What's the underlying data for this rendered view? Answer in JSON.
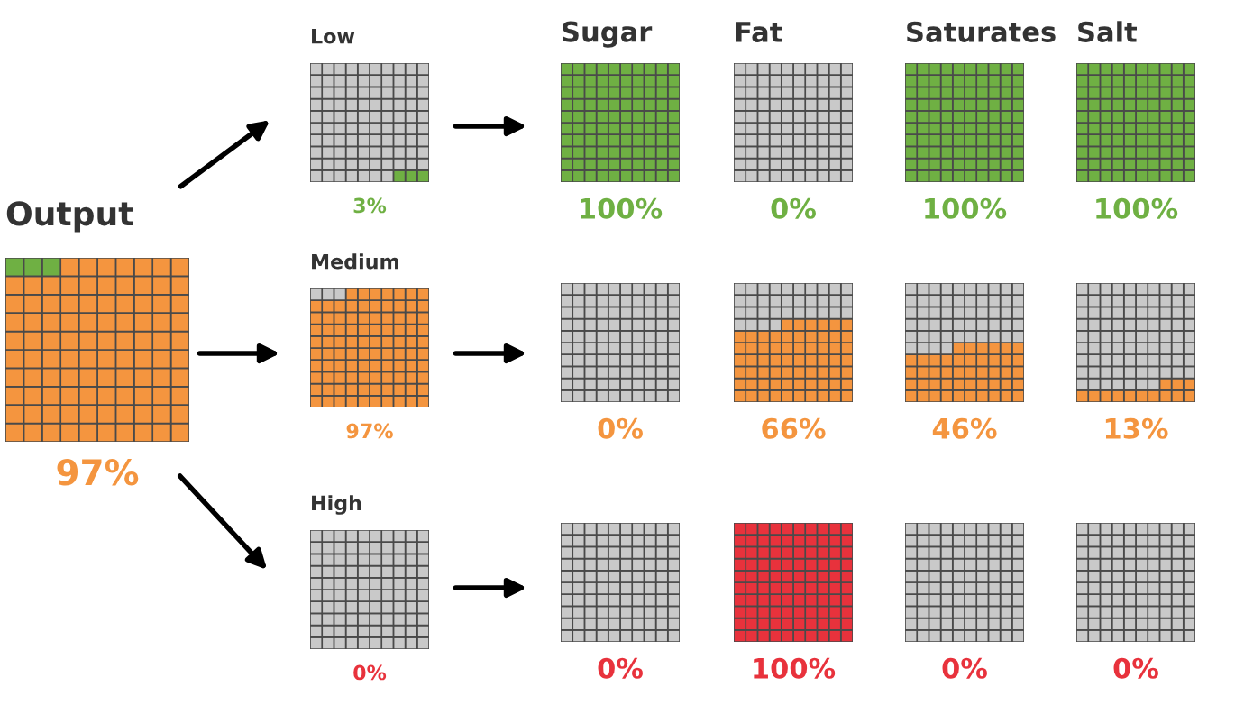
{
  "chart_data": [
    {
      "type": "other",
      "title": "Output",
      "values": [
        97,
        null
      ],
      "colors": [
        "#f4953f",
        "#6fb043"
      ],
      "value_labels": [
        "97%",
        null
      ]
    },
    {
      "type": "other",
      "title": "Low",
      "values": [
        3,
        null
      ],
      "colors": [
        "#6fb043",
        "#c9c9c9"
      ],
      "value_labels": [
        "3%",
        null
      ]
    },
    {
      "type": "other",
      "title": "Medium",
      "values": [
        97,
        null
      ],
      "colors": [
        "#f4953f",
        "#c9c9c9"
      ],
      "value_labels": [
        "97%",
        null
      ]
    },
    {
      "type": "other",
      "title": "High",
      "values": [
        0,
        null
      ],
      "colors": [
        "#e8323c",
        "#c9c9c9"
      ],
      "value_labels": [
        "0%",
        null
      ]
    },
    {
      "type": "other",
      "title": "Sugar",
      "values": [
        100,
        null
      ],
      "colors": [
        "#6fb043",
        "#c9c9c9"
      ],
      "value_labels": [
        "100%",
        null
      ]
    },
    {
      "type": "other",
      "title": "Fat",
      "values": [
        0,
        null
      ],
      "colors": [
        "#6fb043",
        "#c9c9c9"
      ],
      "value_labels": [
        "0%",
        null
      ]
    },
    {
      "type": "other",
      "title": "Saturates",
      "values": [
        100,
        null
      ],
      "colors": [
        "#6fb043",
        "#c9c9c9"
      ],
      "value_labels": [
        "100%",
        null
      ]
    },
    {
      "type": "other",
      "title": "Salt",
      "values": [
        100,
        null
      ],
      "colors": [
        "#6fb043",
        "#c9c9c9"
      ],
      "value_labels": [
        "100%",
        null
      ]
    },
    {
      "type": "other",
      "values": [
        0,
        null
      ],
      "colors": [
        "#f4953f",
        "#c9c9c9"
      ],
      "value_labels": [
        "0%",
        null
      ]
    },
    {
      "type": "other",
      "values": [
        66,
        null
      ],
      "colors": [
        "#f4953f",
        "#c9c9c9"
      ],
      "value_labels": [
        "66%",
        null
      ]
    },
    {
      "type": "other",
      "values": [
        46,
        null
      ],
      "colors": [
        "#f4953f",
        "#c9c9c9"
      ],
      "value_labels": [
        "46%",
        null
      ]
    },
    {
      "type": "other",
      "values": [
        13,
        null
      ],
      "colors": [
        "#f4953f",
        "#c9c9c9"
      ],
      "value_labels": [
        "13%",
        null
      ]
    },
    {
      "type": "other",
      "values": [
        0,
        null
      ],
      "colors": [
        "#e8323c",
        "#c9c9c9"
      ],
      "value_labels": [
        "0%",
        null
      ]
    },
    {
      "type": "other",
      "values": [
        100,
        null
      ],
      "colors": [
        "#e8323c",
        "#c9c9c9"
      ],
      "value_labels": [
        "100%",
        null
      ]
    },
    {
      "type": "other",
      "values": [
        0,
        null
      ],
      "colors": [
        "#e8323c",
        "#c9c9c9"
      ],
      "value_labels": [
        "0%",
        null
      ]
    },
    {
      "type": "other",
      "values": [
        0,
        null
      ],
      "colors": [
        "#e8323c",
        "#c9c9c9"
      ],
      "value_labels": [
        "0%",
        null
      ]
    }
  ]
}
